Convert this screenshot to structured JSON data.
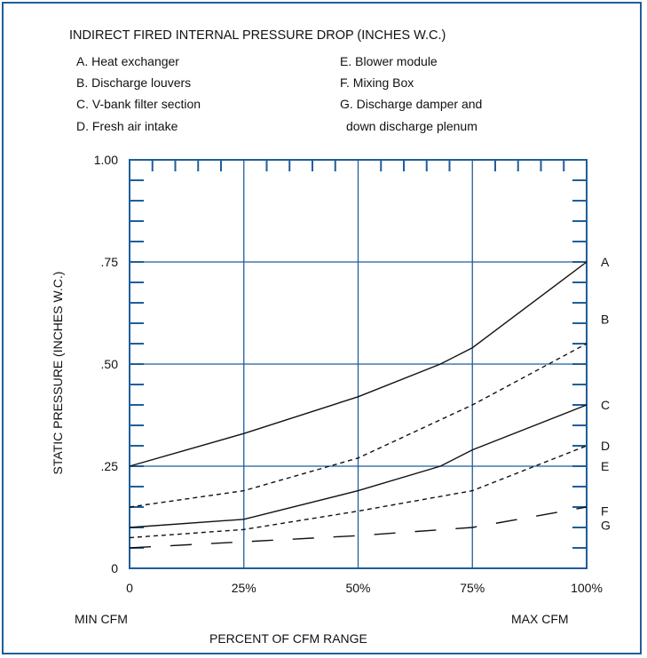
{
  "title": "INDIRECT FIRED INTERNAL PRESSURE DROP (INCHES W.C.)",
  "legend_left": [
    "A. Heat exchanger",
    "B. Discharge louvers",
    "C. V-bank filter section",
    "D. Fresh air intake"
  ],
  "legend_right": [
    "E. Blower module",
    "F. Mixing Box",
    "G. Discharge damper and",
    "down discharge plenum"
  ],
  "bottom": {
    "min_label": "MIN CFM",
    "max_label": "MAX CFM",
    "xlabel": "PERCENT OF CFM RANGE"
  },
  "colors": {
    "frame": "#1f5e9a",
    "grid": "#1f5e9a",
    "curves": "#111111"
  },
  "chart_data": {
    "type": "line",
    "ylabel": "STATIC PRESSURE (INCHES W.C.)",
    "xlabel": "PERCENT OF CFM RANGE",
    "xlim": [
      0,
      100
    ],
    "ylim": [
      0,
      1.0
    ],
    "x_ticks": [
      "0",
      "25%",
      "50%",
      "75%",
      "100%"
    ],
    "y_ticks": [
      "0",
      ".25",
      ".50",
      ".75",
      "1.00"
    ],
    "grid": true,
    "series": [
      {
        "name": "A",
        "style": "solid",
        "points": [
          [
            0,
            0.25
          ],
          [
            25,
            0.33
          ],
          [
            50,
            0.42
          ],
          [
            68,
            0.5
          ],
          [
            75,
            0.54
          ],
          [
            100,
            0.75
          ]
        ]
      },
      {
        "name": "B",
        "style": "dashed",
        "points": [
          [
            0,
            0.15
          ],
          [
            25,
            0.19
          ],
          [
            50,
            0.27
          ],
          [
            75,
            0.4
          ],
          [
            100,
            0.55
          ]
        ]
      },
      {
        "name": "C",
        "style": "solid",
        "points": [
          [
            0,
            0.1
          ],
          [
            25,
            0.12
          ],
          [
            50,
            0.19
          ],
          [
            68,
            0.25
          ],
          [
            75,
            0.29
          ],
          [
            100,
            0.4
          ]
        ]
      },
      {
        "name": "D",
        "style": "dashed",
        "points": [
          [
            0,
            0.075
          ],
          [
            25,
            0.095
          ],
          [
            50,
            0.14
          ],
          [
            75,
            0.19
          ],
          [
            100,
            0.3
          ]
        ]
      },
      {
        "name": "E",
        "style": "none",
        "points": []
      },
      {
        "name": "F",
        "style": "none",
        "points": []
      },
      {
        "name": "G",
        "style": "longdash",
        "points": [
          [
            0,
            0.05
          ],
          [
            25,
            0.065
          ],
          [
            50,
            0.08
          ],
          [
            75,
            0.1
          ],
          [
            100,
            0.15
          ]
        ]
      }
    ],
    "end_labels": [
      {
        "name": "A",
        "y": 0.75
      },
      {
        "name": "B",
        "y": 0.61
      },
      {
        "name": "C",
        "y": 0.4
      },
      {
        "name": "D",
        "y": 0.3
      },
      {
        "name": "E",
        "y": 0.25
      },
      {
        "name": "F",
        "y": 0.14
      },
      {
        "name": "G",
        "y": 0.105
      }
    ]
  }
}
